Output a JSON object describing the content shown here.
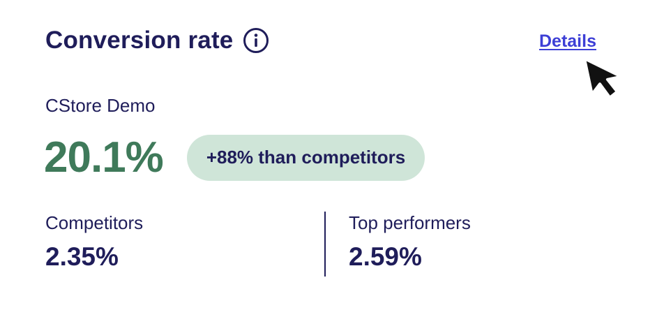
{
  "card": {
    "title": "Conversion rate",
    "details_link": "Details",
    "store_name": "CStore Demo",
    "conversion_rate": "20.1%",
    "comparison_badge": "+88% than competitors",
    "stats": [
      {
        "label": "Competitors",
        "value": "2.35%"
      },
      {
        "label": "Top performers",
        "value": "2.59%"
      }
    ]
  },
  "icons": {
    "info": "info-circle-icon",
    "cursor": "mouse-pointer-icon"
  },
  "colors": {
    "text_primary": "#1f1d5a",
    "rate_green": "#3f7a5a",
    "badge_bg": "#cfe5d8",
    "link_blue": "#3d3fd6"
  }
}
